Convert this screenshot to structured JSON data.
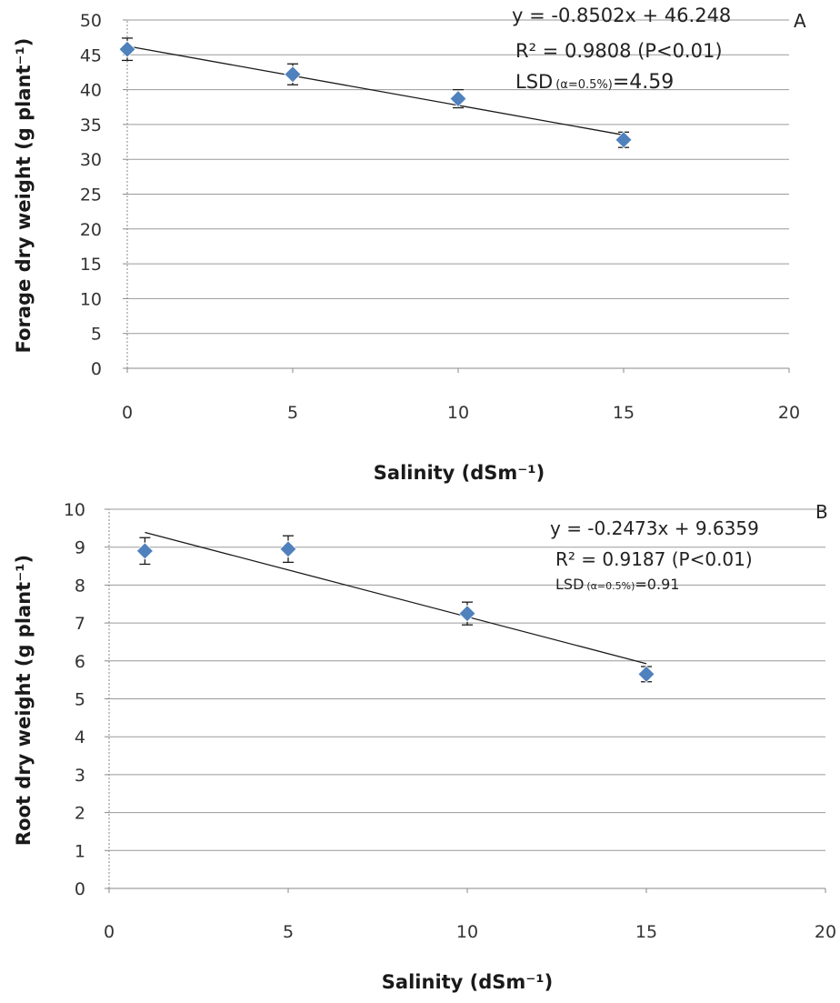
{
  "chart_data": [
    {
      "panel": "A",
      "type": "scatter",
      "xlabel": "Salinity (dSm⁻¹)",
      "ylabel": "Forage dry weight (g plant⁻¹)",
      "xlim": [
        0,
        20
      ],
      "ylim": [
        0,
        50
      ],
      "xticks": [
        0,
        5,
        10,
        15,
        20
      ],
      "yticks": [
        0,
        5,
        10,
        15,
        20,
        25,
        30,
        35,
        40,
        45,
        50
      ],
      "grid": true,
      "points": [
        {
          "x": 0,
          "y": 45.8,
          "err": 1.6
        },
        {
          "x": 5,
          "y": 42.2,
          "err": 1.5
        },
        {
          "x": 10,
          "y": 38.7,
          "err": 1.3
        },
        {
          "x": 15,
          "y": 32.8,
          "err": 1.1
        }
      ],
      "trendline": {
        "slope": -0.8502,
        "intercept": 46.248,
        "x_range": [
          0,
          15
        ]
      },
      "annotations": {
        "equation": "y = -0.8502x + 46.248",
        "r2": "R² = 0.9808 (P<0.01)",
        "lsd_prefix": "LSD",
        "lsd_sub": "(α=0.5%)",
        "lsd_value": "=4.59"
      },
      "marker_color": "#4f81bd",
      "trend_color": "#1a1a1a"
    },
    {
      "panel": "B",
      "type": "scatter",
      "xlabel": "Salinity (dSm⁻¹)",
      "ylabel": "Root dry weight (g plant⁻¹)",
      "xlim": [
        0,
        20
      ],
      "ylim": [
        0,
        10
      ],
      "xticks": [
        0,
        5,
        10,
        15,
        20
      ],
      "yticks": [
        0,
        1,
        2,
        3,
        4,
        5,
        6,
        7,
        8,
        9,
        10
      ],
      "grid": true,
      "points": [
        {
          "x": 1,
          "y": 8.9,
          "err": 0.35
        },
        {
          "x": 5,
          "y": 8.95,
          "err": 0.35
        },
        {
          "x": 10,
          "y": 7.25,
          "err": 0.3
        },
        {
          "x": 15,
          "y": 5.65,
          "err": 0.2
        }
      ],
      "trendline": {
        "slope": -0.2473,
        "intercept": 9.6359,
        "x_range": [
          1,
          15
        ]
      },
      "annotations": {
        "equation": "y = -0.2473x + 9.6359",
        "r2": "R² = 0.9187 (P<0.01)",
        "lsd_prefix": "LSD",
        "lsd_sub": "(α=0.5%)",
        "lsd_value": "=0.91"
      },
      "marker_color": "#4f81bd",
      "trend_color": "#1a1a1a"
    }
  ]
}
